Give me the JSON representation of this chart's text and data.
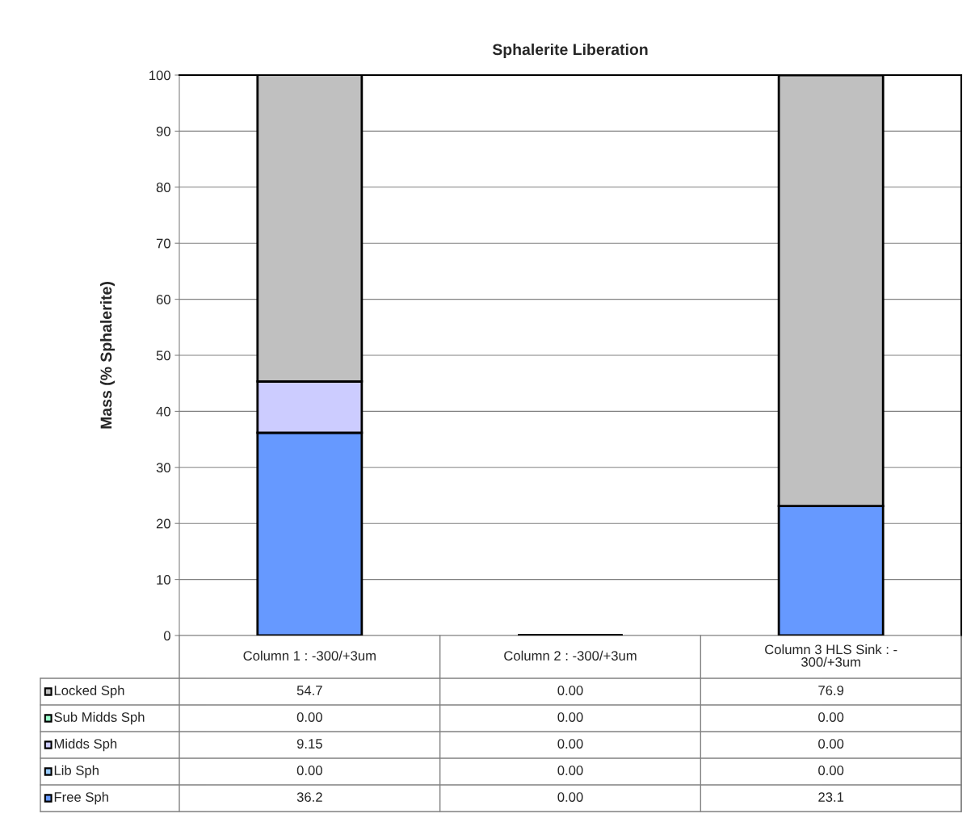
{
  "chart_data": {
    "type": "bar",
    "title": "Sphalerite Liberation",
    "ylabel": "Mass (% Sphalerite)",
    "categories": [
      "Column 1 : -300/+3um",
      "Column 2 : -300/+3um",
      "Column 3 HLS Sink : -\n300/+3um"
    ],
    "stacked": true,
    "series": [
      {
        "name": "Free Sph",
        "color": "#6699ff",
        "values": [
          36.2,
          0.0,
          23.1
        ],
        "value_labels": [
          "36.2",
          "0.00",
          "23.1"
        ]
      },
      {
        "name": "Lib Sph",
        "color": "#99ccff",
        "values": [
          0.0,
          0.0,
          0.0
        ],
        "value_labels": [
          "0.00",
          "0.00",
          "0.00"
        ]
      },
      {
        "name": "Midds Sph",
        "color": "#ccccff",
        "values": [
          9.15,
          0.0,
          0.0
        ],
        "value_labels": [
          "9.15",
          "0.00",
          "0.00"
        ]
      },
      {
        "name": "Sub Midds Sph",
        "color": "#99ffcc",
        "values": [
          0.0,
          0.0,
          0.0
        ],
        "value_labels": [
          "0.00",
          "0.00",
          "0.00"
        ]
      },
      {
        "name": "Locked Sph",
        "color": "#c0c0c0",
        "values": [
          54.7,
          0.0,
          76.9
        ],
        "value_labels": [
          "54.7",
          "0.00",
          "76.9"
        ]
      }
    ],
    "ylim": [
      0,
      100
    ],
    "yticks": [
      0,
      10,
      20,
      30,
      40,
      50,
      60,
      70,
      80,
      90,
      100
    ],
    "grid": "y",
    "legend": "bottom"
  }
}
